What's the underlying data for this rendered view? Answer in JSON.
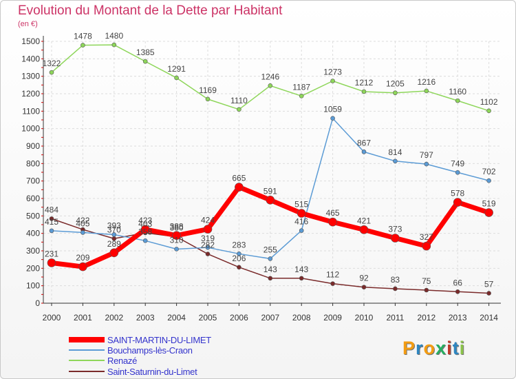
{
  "header": {
    "title": "Evolution du Montant de la Dette par Habitant",
    "unit": "(en €)"
  },
  "logo": {
    "text": "Proxiti",
    "colors": [
      "#f39c12",
      "#2e86c1",
      "#f39c12",
      "#27ae60",
      "#c0392b",
      "#2e86c1",
      "#8bc34a"
    ]
  },
  "chart_data": {
    "type": "line",
    "title": "Evolution du Montant de la Dette par Habitant",
    "ylabel": "(en €)",
    "xlabel": "",
    "x": [
      "2000",
      "2001",
      "2002",
      "2003",
      "2004",
      "2005",
      "2006",
      "2007",
      "2008",
      "2009",
      "2010",
      "2011",
      "2012",
      "2013",
      "2014"
    ],
    "ylim": [
      0,
      1500
    ],
    "yticks": [
      0,
      100,
      200,
      300,
      400,
      500,
      600,
      700,
      800,
      900,
      1000,
      1100,
      1200,
      1300,
      1400,
      1500
    ],
    "grid": true,
    "legend_position": "bottom-left",
    "series": [
      {
        "name": "SAINT-MARTIN-DU-LIMET",
        "color": "#ff0000",
        "values": [
          231,
          209,
          289,
          423,
          388,
          424,
          665,
          591,
          515,
          465,
          421,
          373,
          327,
          578,
          519
        ]
      },
      {
        "name": "Bouchamps-lès-Craon",
        "color": "#5b9bd5",
        "values": [
          415,
          405,
          393,
          358,
          310,
          319,
          283,
          255,
          416,
          1059,
          867,
          814,
          797,
          749,
          702
        ]
      },
      {
        "name": "Renazé",
        "color": "#8ed65a",
        "values": [
          1322,
          1478,
          1480,
          1385,
          1291,
          1169,
          1110,
          1246,
          1187,
          1273,
          1212,
          1205,
          1216,
          1160,
          1102
        ]
      },
      {
        "name": "Saint-Saturnin-du-Limet",
        "color": "#7a2a2a",
        "values": [
          484,
          422,
          370,
          403,
          380,
          282,
          206,
          143,
          143,
          112,
          92,
          83,
          75,
          66,
          57
        ]
      }
    ]
  }
}
